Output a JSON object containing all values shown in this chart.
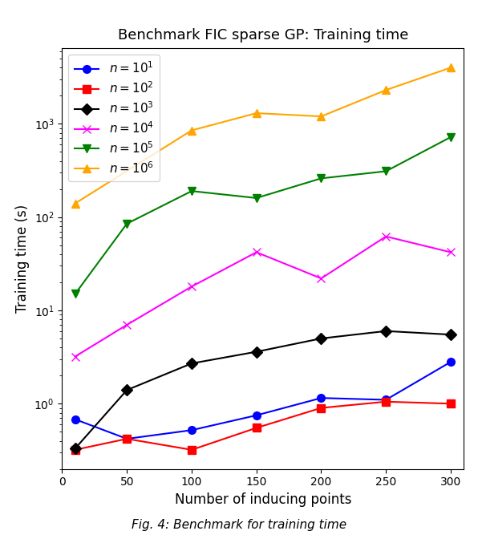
{
  "title": "Benchmark FIC sparse GP: Training time",
  "xlabel": "Number of inducing points",
  "ylabel": "Training time (s)",
  "x": [
    10,
    50,
    100,
    150,
    200,
    250,
    300
  ],
  "series": [
    {
      "label": "$n = 10^1$",
      "color": "blue",
      "marker": "o",
      "y": [
        0.68,
        0.42,
        0.52,
        0.75,
        1.15,
        1.1,
        2.8
      ]
    },
    {
      "label": "$n = 10^2$",
      "color": "red",
      "marker": "s",
      "y": [
        0.32,
        0.42,
        0.32,
        0.55,
        0.9,
        1.05,
        1.0
      ]
    },
    {
      "label": "$n = 10^3$",
      "color": "black",
      "marker": "D",
      "y": [
        0.33,
        1.4,
        2.7,
        3.6,
        5.0,
        6.0,
        5.5
      ]
    },
    {
      "label": "$n = 10^4$",
      "color": "magenta",
      "marker": "x",
      "y": [
        3.2,
        7.0,
        18.0,
        42.0,
        22.0,
        62.0,
        42.0
      ]
    },
    {
      "label": "$n = 10^5$",
      "color": "green",
      "marker": "v",
      "y": [
        15.0,
        85.0,
        190.0,
        160.0,
        260.0,
        310.0,
        720.0
      ]
    },
    {
      "label": "$n = 10^6$",
      "color": "orange",
      "marker": "^",
      "y": [
        140.0,
        null,
        850.0,
        1300.0,
        1200.0,
        2300.0,
        4000.0
      ]
    }
  ],
  "xlim": [
    0,
    310
  ],
  "xticks": [
    0,
    50,
    100,
    150,
    200,
    250,
    300
  ],
  "xtick_labels": [
    "0",
    "50",
    "100",
    "150",
    "200",
    "250",
    "300"
  ],
  "figsize": [
    5.96,
    6.72
  ],
  "dpi": 100,
  "caption": "Fig. 4: Benchmark for training time"
}
